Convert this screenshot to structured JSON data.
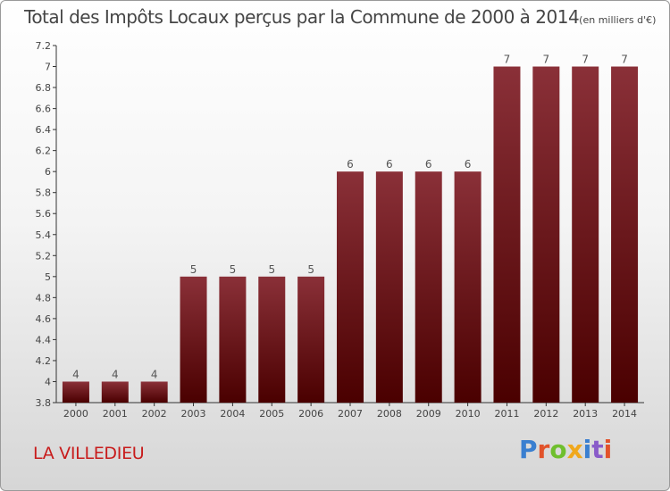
{
  "title": "Total des Impôts Locaux perçus par la Commune de 2000 à 2014",
  "title_unit": "(en milliers d'€)",
  "commune": "LA VILLEDIEU",
  "logo": "Proxiti",
  "colors": {
    "bar_top": "#8a3038",
    "bar_bottom": "#4a0000",
    "commune_text": "#c81c1c",
    "axis": "#333333"
  },
  "chart_data": {
    "type": "bar",
    "title": "Total des Impôts Locaux perçus par la Commune de 2000 à 2014 (en milliers d'€)",
    "xlabel": "",
    "ylabel": "",
    "categories": [
      "2000",
      "2001",
      "2002",
      "2003",
      "2004",
      "2005",
      "2006",
      "2007",
      "2008",
      "2009",
      "2010",
      "2011",
      "2012",
      "2013",
      "2014"
    ],
    "values": [
      4,
      4,
      4,
      5,
      5,
      5,
      5,
      6,
      6,
      6,
      6,
      7,
      7,
      7,
      7
    ],
    "data_labels": [
      "4",
      "4",
      "4",
      "5",
      "5",
      "5",
      "5",
      "6",
      "6",
      "6",
      "6",
      "7",
      "7",
      "7",
      "7"
    ],
    "ylim": [
      3.8,
      7.2
    ],
    "yticks": [
      3.8,
      4,
      4.2,
      4.4,
      4.6,
      4.8,
      5,
      5.2,
      5.4,
      5.6,
      5.8,
      6,
      6.2,
      6.4,
      6.6,
      6.8,
      7,
      7.2
    ],
    "ytick_labels": [
      "3.8",
      "4",
      "4.2",
      "4.4",
      "4.6",
      "4.8",
      "5",
      "5.2",
      "5.4",
      "5.6",
      "5.8",
      "6",
      "6.2",
      "6.4",
      "6.6",
      "6.8",
      "7",
      "7.2"
    ],
    "grid": false,
    "legend": "none"
  }
}
